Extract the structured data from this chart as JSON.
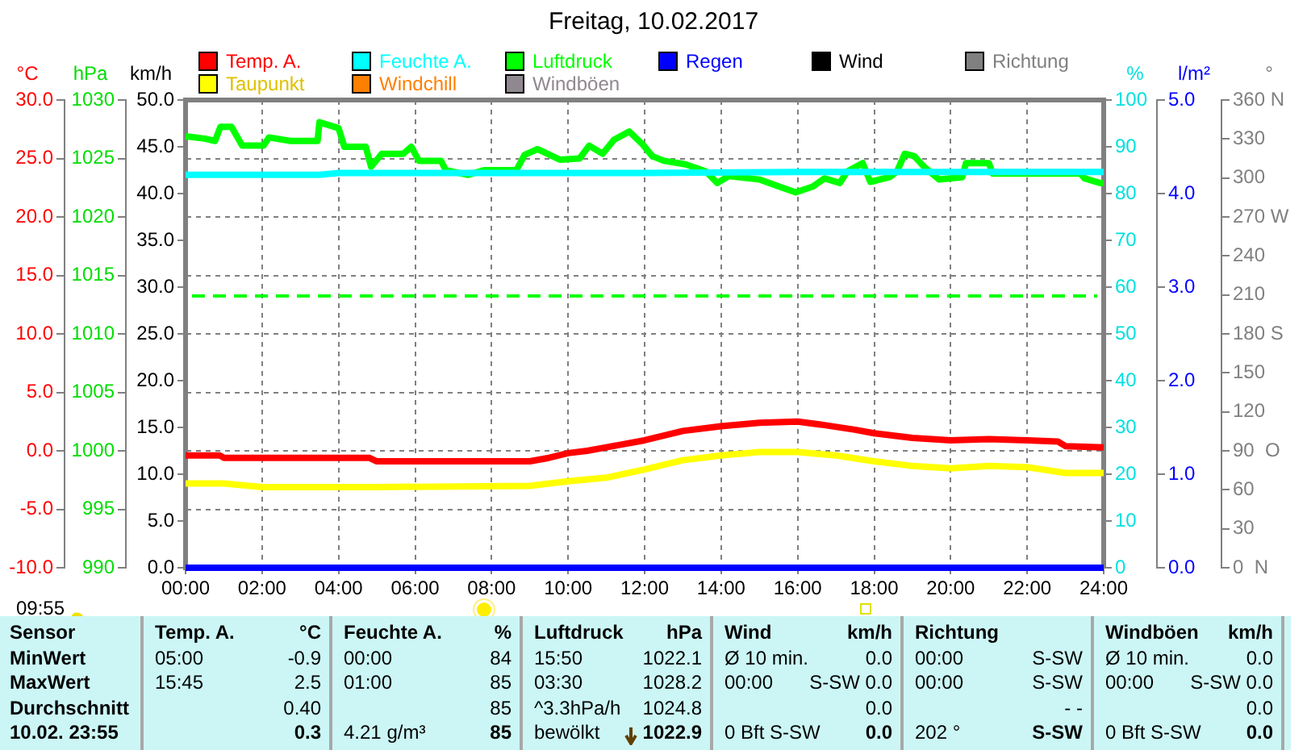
{
  "chart_data": {
    "type": "line",
    "title": "Freitag, 10.02.2017",
    "legend": "top",
    "grid": true,
    "ylabel": "°C",
    "y2label": "hPa",
    "y3label": "%",
    "xlim": [
      0,
      24
    ],
    "xticks": [
      {
        "value": 0,
        "label": "00:00"
      },
      {
        "value": 2,
        "label": "02:00"
      },
      {
        "value": 4,
        "label": "04:00"
      },
      {
        "value": 6,
        "label": "06:00"
      },
      {
        "value": 8,
        "label": "08:00"
      },
      {
        "value": 10,
        "label": "10:00"
      },
      {
        "value": 12,
        "label": "12:00"
      },
      {
        "value": 14,
        "label": "14:00"
      },
      {
        "value": 16,
        "label": "16:00"
      },
      {
        "value": 18,
        "label": "18:00"
      },
      {
        "value": 20,
        "label": "20:00"
      },
      {
        "value": 22,
        "label": "22:00"
      },
      {
        "value": 24,
        "label": "24:00"
      }
    ],
    "ylim": [
      -10,
      30
    ],
    "yticks": [
      {
        "value": -10,
        "label": "-10.0"
      },
      {
        "value": -5,
        "label": "-5.0"
      },
      {
        "value": 0,
        "label": "0.0"
      },
      {
        "value": 5,
        "label": "5.0"
      },
      {
        "value": 10,
        "label": "10.0"
      },
      {
        "value": 15,
        "label": "15.0"
      },
      {
        "value": 20,
        "label": "20.0"
      },
      {
        "value": 25,
        "label": "25.0"
      },
      {
        "value": 30,
        "label": "30.0"
      }
    ],
    "y2lim": [
      990,
      1030
    ],
    "y2ticks": [
      990,
      995,
      1000,
      1005,
      1010,
      1015,
      1020,
      1025,
      1030
    ],
    "y3lim": [
      0,
      100
    ],
    "y3ticks": [
      0,
      10,
      20,
      30,
      40,
      50,
      60,
      70,
      80,
      90,
      100
    ],
    "ref_lines": [
      {
        "axis": "y2",
        "value": 1013.25,
        "color": "#00ff00",
        "line_style": "dashed"
      }
    ],
    "series": [
      {
        "name": "Temp. A.",
        "color": "#ff0000",
        "x": [
          0,
          0.9,
          1.0,
          1.5,
          2,
          4.8,
          5,
          9,
          9.5,
          10,
          10.5,
          11,
          12,
          13,
          14,
          15,
          16,
          16.7,
          17.5,
          18,
          19,
          20,
          21,
          22,
          22.8,
          23,
          24
        ],
        "values": [
          -0.4,
          -0.4,
          -0.6,
          -0.6,
          -0.6,
          -0.6,
          -0.9,
          -0.9,
          -0.6,
          -0.2,
          0.0,
          0.3,
          0.9,
          1.7,
          2.1,
          2.4,
          2.5,
          2.2,
          1.8,
          1.5,
          1.1,
          0.9,
          1.0,
          0.9,
          0.8,
          0.4,
          0.3
        ]
      },
      {
        "name": "Feuchte A.",
        "color": "#00ffff",
        "axis": "y3",
        "x": [
          0,
          3.5,
          4,
          12,
          16,
          24
        ],
        "values": [
          84,
          84,
          84.4,
          84.4,
          84.6,
          84.6
        ]
      },
      {
        "name": "Luftdruck",
        "color": "#00ff00",
        "axis": "y2",
        "x": [
          0,
          0.5,
          0.77,
          0.91,
          1.2,
          1.48,
          2.04,
          2.18,
          2.74,
          3.45,
          3.5,
          4.0,
          4.15,
          4.71,
          4.85,
          5.13,
          5.69,
          5.9,
          6.1,
          6.68,
          6.8,
          7.38,
          7.8,
          8.65,
          8.86,
          9.2,
          9.78,
          10.3,
          10.55,
          10.9,
          11.2,
          11.6,
          11.95,
          12.2,
          12.5,
          13.07,
          13.6,
          13.9,
          14.2,
          15.0,
          15.6,
          15.95,
          16.4,
          16.7,
          17.1,
          17.3,
          17.7,
          17.9,
          18.4,
          18.6,
          18.8,
          19.05,
          19.3,
          19.7,
          20.3,
          20.4,
          21.0,
          21.1,
          22.0,
          23.4,
          23.5,
          23.9,
          24
        ],
        "values": [
          1026.9,
          1026.7,
          1026.5,
          1027.7,
          1027.7,
          1026.1,
          1026.1,
          1026.8,
          1026.5,
          1026.5,
          1028.1,
          1027.6,
          1026.0,
          1026.0,
          1024.3,
          1025.4,
          1025.4,
          1026.0,
          1024.8,
          1024.8,
          1024.0,
          1023.6,
          1024.0,
          1024.0,
          1025.3,
          1025.8,
          1024.9,
          1025.0,
          1026.1,
          1025.4,
          1026.6,
          1027.3,
          1026.2,
          1025.2,
          1024.8,
          1024.5,
          1023.9,
          1022.9,
          1023.5,
          1023.2,
          1022.5,
          1022.1,
          1022.6,
          1023.3,
          1022.9,
          1023.9,
          1024.6,
          1023.0,
          1023.4,
          1023.9,
          1025.4,
          1025.2,
          1024.3,
          1023.2,
          1023.4,
          1024.6,
          1024.6,
          1023.7,
          1023.7,
          1023.7,
          1023.3,
          1022.9,
          1022.9
        ]
      },
      {
        "name": "Regen",
        "color": "#0000ff",
        "axis": "y3",
        "x": [
          0,
          24
        ],
        "values": [
          0,
          0
        ]
      },
      {
        "name": "Wind",
        "color": "#000000"
      },
      {
        "name": "Richtung",
        "color": "#808080"
      },
      {
        "name": "Taupunkt",
        "color": "#ffff00",
        "x": [
          0,
          1,
          2,
          5,
          9,
          10,
          11,
          12,
          13,
          14,
          15,
          16,
          17,
          18,
          19,
          20,
          21,
          22,
          23,
          24
        ],
        "values": [
          -2.8,
          -2.8,
          -3.1,
          -3.1,
          -3.0,
          -2.6,
          -2.3,
          -1.6,
          -0.8,
          -0.4,
          -0.1,
          -0.1,
          -0.4,
          -0.9,
          -1.3,
          -1.5,
          -1.3,
          -1.4,
          -1.9,
          -1.9
        ]
      },
      {
        "name": "Windchill",
        "color": "#ff8000"
      },
      {
        "name": "Windböen",
        "color": "#908890"
      }
    ],
    "annotations": [
      "km/h",
      "0.0",
      "5.0",
      "10.0",
      "15.0",
      "20.0",
      "25.0",
      "30.0",
      "35.0",
      "40.0",
      "45.0",
      "50.0",
      "l/m²",
      "0.0",
      "1.0",
      "2.0",
      "3.0",
      "4.0",
      "5.0",
      "°",
      "0  N",
      "30",
      "60",
      "90  O",
      "120",
      "150",
      "180 S",
      "210",
      "240",
      "270 W",
      "300",
      "330",
      "360 N",
      "09:55",
      "Sensor",
      "Temp. A.",
      "°C",
      "Feuchte A.",
      "%",
      "Luftdruck",
      "hPa",
      "Wind",
      "km/h",
      "Richtung",
      "Windböen",
      "km/h",
      "MinWert",
      "05:00",
      "-0.9",
      "00:00",
      "84",
      "15:50",
      "1022.1",
      "Ø 10 min.",
      "0.0",
      "00:00",
      "S-SW",
      "Ø 10 min.",
      "0.0",
      "MaxWert",
      "15:45",
      "2.5",
      "01:00",
      "85",
      "03:30",
      "1028.2",
      "00:00",
      "S-SW 0.0",
      "00:00",
      "S-SW",
      "00:00",
      "S-SW 0.0",
      "Durchschnitt",
      "0.40",
      "85",
      "^3.3hPa/h",
      "1024.8",
      "0.0",
      "- -",
      "0.0",
      "10.02. 23:55",
      "0.3",
      "4.21 g/m³",
      "85",
      "bewölkt",
      "1022.9",
      "0 Bft S-SW",
      "0.0",
      "202 °",
      "S-SW",
      "0 Bft S-SW",
      "0.0"
    ]
  }
}
